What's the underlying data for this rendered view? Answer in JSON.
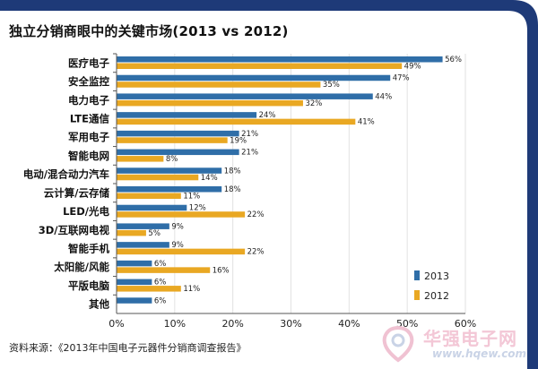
{
  "chart_data": {
    "type": "bar",
    "orientation": "horizontal",
    "title": "独立分销商眼中的关键市场(2013 vs 2012)",
    "categories": [
      "医疗电子",
      "安全监控",
      "电力电子",
      "LTE通信",
      "军用电子",
      "智能电网",
      "电动/混合动力汽车",
      "云计算/云存储",
      "LED/光电",
      "3D/互联网电视",
      "智能手机",
      "太阳能/风能",
      "平版电脑",
      "其他"
    ],
    "series": [
      {
        "name": "2013",
        "color": "#2f6ea8",
        "values": [
          56,
          47,
          44,
          24,
          21,
          21,
          18,
          18,
          12,
          9,
          9,
          6,
          6,
          6
        ],
        "labels": [
          "56%",
          "47%",
          "44%",
          "24%",
          "21%",
          "21%",
          "18%",
          "18%",
          "12%",
          "9%",
          "9%",
          "6%",
          "6%",
          "6%"
        ]
      },
      {
        "name": "2012",
        "color": "#e9a823",
        "values": [
          49,
          35,
          32,
          41,
          19,
          8,
          14,
          11,
          22,
          5,
          22,
          16,
          11,
          null
        ],
        "labels": [
          "49%",
          "35%",
          "32%",
          "41%",
          "19%",
          "8%",
          "14%",
          "11%",
          "22%",
          "5%",
          "22%",
          "16%",
          "11%",
          ""
        ]
      }
    ],
    "xlim": [
      0,
      60
    ],
    "xticks": [
      "0%",
      "10%",
      "20%",
      "30%",
      "40%",
      "50%",
      "60%"
    ],
    "grid": true,
    "legend": "bottom-right"
  },
  "source": "资料来源：《2013年中国电子元器件分销商调查报告》",
  "watermark": {
    "brand": "华强电子网",
    "url": "www.hqew.com"
  },
  "colors": {
    "frame": "#1e3a78"
  }
}
